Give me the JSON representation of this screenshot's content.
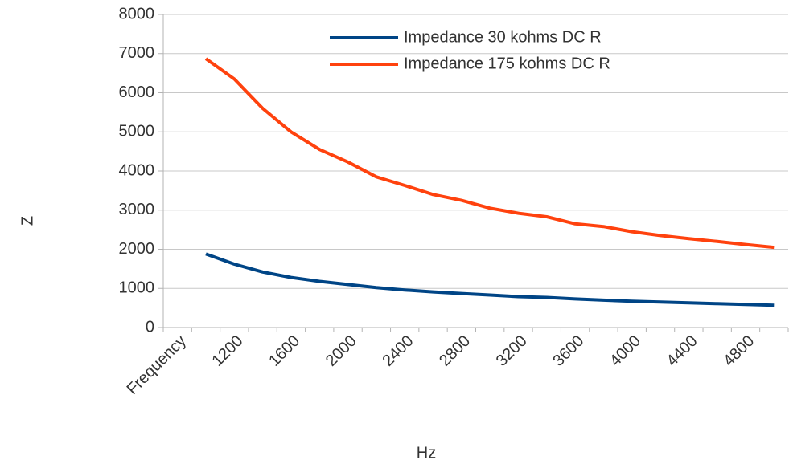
{
  "chart_data": {
    "type": "line",
    "categories": [
      "Frequency",
      null,
      "1200",
      null,
      "1600",
      null,
      "2000",
      null,
      "2400",
      null,
      "2800",
      null,
      "3200",
      null,
      "3600",
      null,
      "4000",
      null,
      "4400",
      null,
      "4800",
      null
    ],
    "series": [
      {
        "name": "Impedance 30 kohms DC R",
        "color": "#004586",
        "values": [
          null,
          1880,
          1620,
          1420,
          1280,
          1180,
          1100,
          1020,
          960,
          910,
          870,
          830,
          790,
          770,
          730,
          700,
          670,
          650,
          630,
          610,
          590,
          570
        ]
      },
      {
        "name": "Impedance 175 kohms DC R",
        "color": "#ff420e",
        "values": [
          null,
          6870,
          6350,
          5600,
          5000,
          4550,
          4230,
          3850,
          3630,
          3400,
          3250,
          3050,
          2920,
          2830,
          2650,
          2580,
          2450,
          2350,
          2270,
          2200,
          2120,
          2050
        ]
      }
    ],
    "xlabel": "Hz",
    "ylabel": "Z",
    "ylim": [
      0,
      8000
    ],
    "yticks": [
      0,
      1000,
      2000,
      3000,
      4000,
      5000,
      6000,
      7000,
      8000
    ],
    "grid": true,
    "legend": "upper right"
  }
}
